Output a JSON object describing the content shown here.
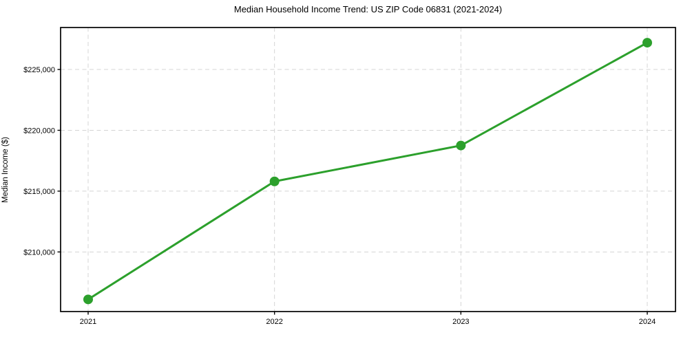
{
  "chart_data": {
    "type": "line",
    "title": "Median Household Income Trend: US ZIP Code 06831 (2021-2024)",
    "xlabel": "",
    "ylabel": "Median Income ($)",
    "categories": [
      "2021",
      "2022",
      "2023",
      "2024"
    ],
    "series": [
      {
        "values": [
          206100,
          215800,
          218750,
          227200
        ],
        "color": "#2ca02c",
        "marker": "circle"
      }
    ],
    "ylim": [
      205100,
      228450
    ],
    "yticks": [
      210000,
      215000,
      220000,
      225000
    ],
    "ytick_labels": [
      "$210,000",
      "$215,000",
      "$220,000",
      "$225,000"
    ],
    "xtick_labels": [
      "2021",
      "2022",
      "2023",
      "2024"
    ],
    "grid": true,
    "legend": "none",
    "grid_color": "#d4d4d4",
    "spine_color": "#000000",
    "background_color": "#ffffff",
    "tick_label_color": "#262626"
  }
}
